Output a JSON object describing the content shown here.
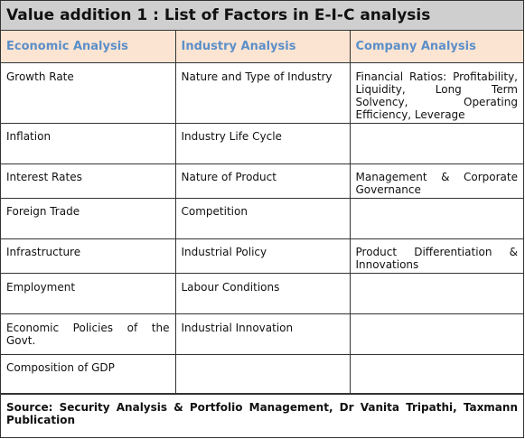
{
  "title": "Value addition 1 : List of Factors in E-I-C analysis",
  "headers": [
    "Economic Analysis",
    "Industry Analysis",
    "Company Analysis"
  ],
  "rows": [
    [
      "Growth Rate",
      "Nature and Type of Industry",
      "Financial Ratios: Profitability, Liquidity, Long Term Solvency, Operating Efficiency, Leverage"
    ],
    [
      "Inflation",
      "Industry Life Cycle",
      ""
    ],
    [
      "Interest Rates",
      "Nature of Product",
      "Management & Corporate Governance"
    ],
    [
      "Foreign Trade",
      "Competition",
      ""
    ],
    [
      "Infrastructure",
      "Industrial Policy",
      "Product Differentiation & Innovations"
    ],
    [
      "Employment",
      "Labour Conditions",
      ""
    ],
    [
      "Economic Policies of the Govt.",
      "Industrial Innovation",
      ""
    ],
    [
      "Composition of GDP",
      "",
      ""
    ]
  ],
  "source": "Source: Security Analysis & Portfolio Management, Dr Vanita Tripathi, Taxmann Publication",
  "colors": {
    "title_bg": "#cfcfcf",
    "header_bg": "#fce4d2",
    "header_text": "#5b8fc9",
    "border": "#333333"
  }
}
